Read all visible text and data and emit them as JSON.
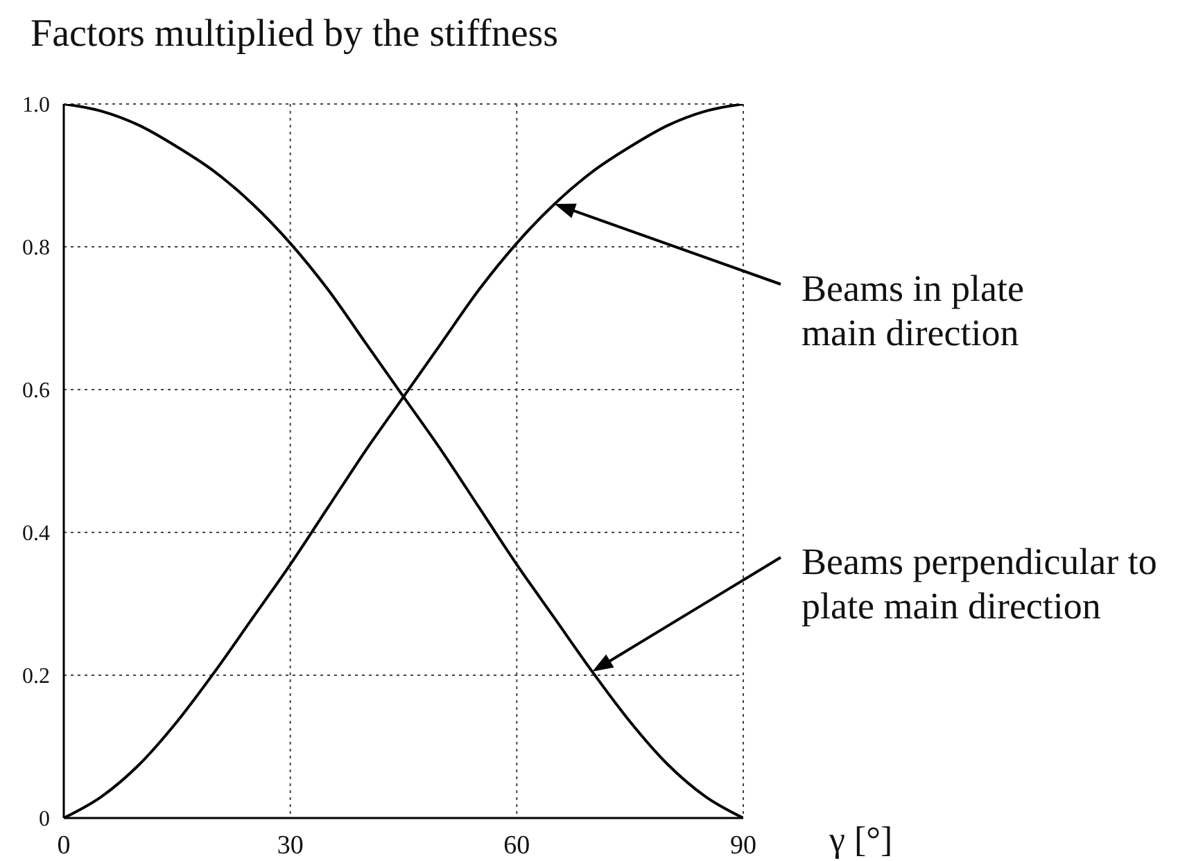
{
  "chart_data": {
    "type": "line",
    "ylabel": "Factors multiplied by the stiffness",
    "xlabel": "γ [°]",
    "x": [
      0,
      5,
      10,
      15,
      20,
      25,
      30,
      35,
      40,
      45,
      50,
      55,
      60,
      65,
      70,
      75,
      80,
      85,
      90
    ],
    "series": [
      {
        "color": "#000000",
        "values": [
          1,
          0.99,
          0.97,
          0.94,
          0.905,
          0.86,
          0.805,
          0.74,
          0.665,
          0.59,
          0.515,
          0.435,
          0.355,
          0.28,
          0.205,
          0.135,
          0.075,
          0.03,
          0
        ]
      },
      {
        "color": "#000000",
        "values": [
          0,
          0.03,
          0.075,
          0.135,
          0.205,
          0.28,
          0.355,
          0.435,
          0.515,
          0.59,
          0.665,
          0.74,
          0.805,
          0.86,
          0.905,
          0.94,
          0.97,
          0.99,
          1
        ]
      }
    ],
    "xlim": [
      0,
      90
    ],
    "ylim": [
      0,
      1
    ],
    "xticks": [
      0,
      30,
      60,
      90
    ],
    "yticks": [
      0,
      0.2,
      0.4,
      0.6,
      0.8,
      {
        "value": 1,
        "label": "1.0"
      }
    ],
    "grid": true,
    "marker": "none",
    "line_style": "solid",
    "annotations": [
      {
        "text": "Beams in plate\nmain direction",
        "x": 65,
        "y": 0.86
      },
      {
        "text": "Beams perpendicular to\nplate main direction",
        "x": 70,
        "y": 0.205
      }
    ]
  }
}
